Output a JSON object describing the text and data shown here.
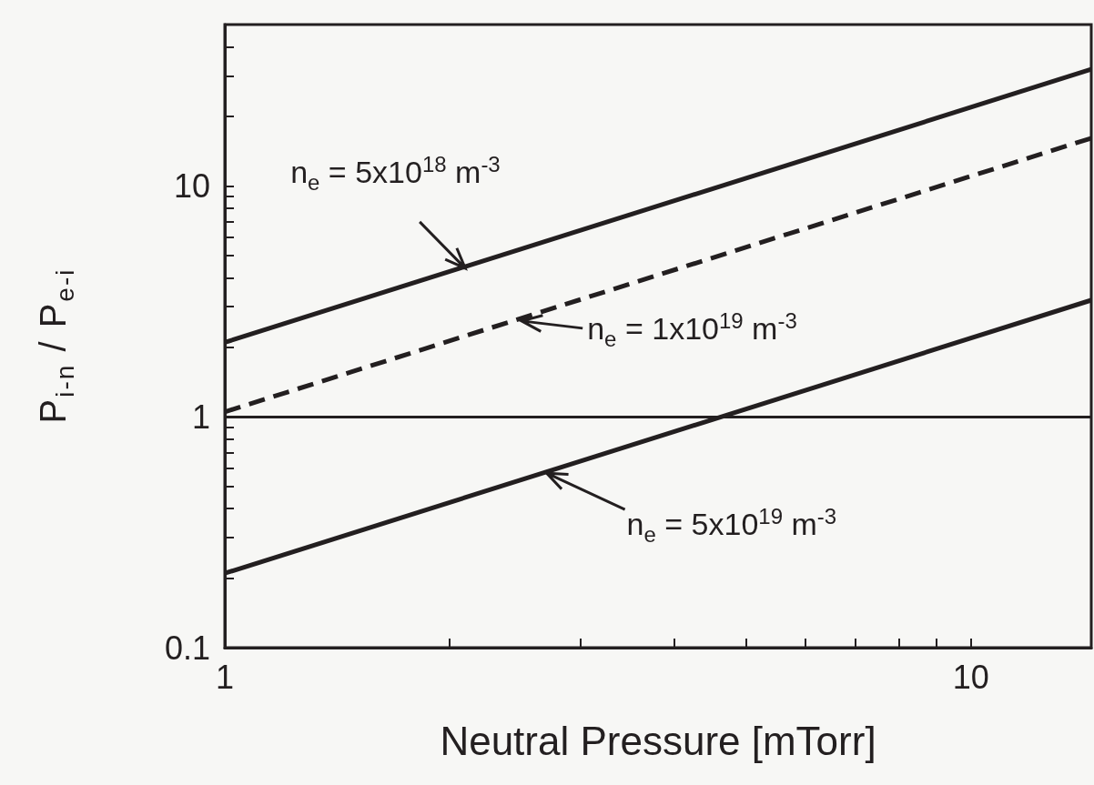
{
  "chart_data": {
    "type": "line",
    "xlabel": "Neutral Pressure [mTorr]",
    "ylabel": "P$_{i-n}$ / P$_{e-i}$",
    "log": "xy",
    "grid": false,
    "marker": "none",
    "xlim": [
      1,
      14.5
    ],
    "xticks": [
      1,
      {
        "value": 2,
        "label": null
      },
      {
        "value": 3,
        "label": null
      },
      {
        "value": 4,
        "label": null
      },
      {
        "value": 5,
        "label": null
      },
      {
        "value": 6,
        "label": null
      },
      {
        "value": 7,
        "label": null
      },
      {
        "value": 8,
        "label": null
      },
      {
        "value": 9,
        "label": null
      },
      10
    ],
    "ylim": [
      0.1,
      50
    ],
    "yticks": [
      0.1,
      {
        "value": 0.2,
        "label": null
      },
      {
        "value": 0.3,
        "label": null
      },
      {
        "value": 0.4,
        "label": null
      },
      {
        "value": 0.5,
        "label": null
      },
      {
        "value": 0.6,
        "label": null
      },
      {
        "value": 0.7,
        "label": null
      },
      {
        "value": 0.8,
        "label": null
      },
      {
        "value": 0.9,
        "label": null
      },
      1,
      {
        "value": 2,
        "label": null
      },
      {
        "value": 3,
        "label": null
      },
      {
        "value": 4,
        "label": null
      },
      {
        "value": 5,
        "label": null
      },
      {
        "value": 6,
        "label": null
      },
      {
        "value": 7,
        "label": null
      },
      {
        "value": 8,
        "label": null
      },
      {
        "value": 9,
        "label": null
      },
      10,
      {
        "value": 20,
        "label": null
      },
      {
        "value": 30,
        "label": null
      },
      {
        "value": 40,
        "label": null
      }
    ],
    "x": [
      1,
      14.5
    ],
    "series": [
      {
        "color": "#231f20",
        "line_style": "solid",
        "values": [
          2.1,
          32
        ]
      },
      {
        "color": "#231f20",
        "line_style": "dashed",
        "values": [
          1.05,
          16.1
        ]
      },
      {
        "color": "#231f20",
        "line_style": "solid",
        "values": [
          0.21,
          3.2
        ]
      }
    ],
    "ref_lines": [
      {
        "axis": "y",
        "value": 1,
        "label": null,
        "color": "#231f20",
        "line_style": "solid"
      }
    ],
    "annotations": [
      {
        "text": "n$_{e}$ = 5x10$^{18}$ m$^{-3}$",
        "x": 2.1,
        "y": 4.4
      },
      {
        "text": "n$_{e}$ = 1x10$^{19}$ m$^{-3}$",
        "x": 2.5,
        "y": 2.6
      },
      {
        "text": "n$_{e}$ = 5x10$^{19}$ m$^{-3}$",
        "x": 2.7,
        "y": 0.57
      }
    ]
  }
}
